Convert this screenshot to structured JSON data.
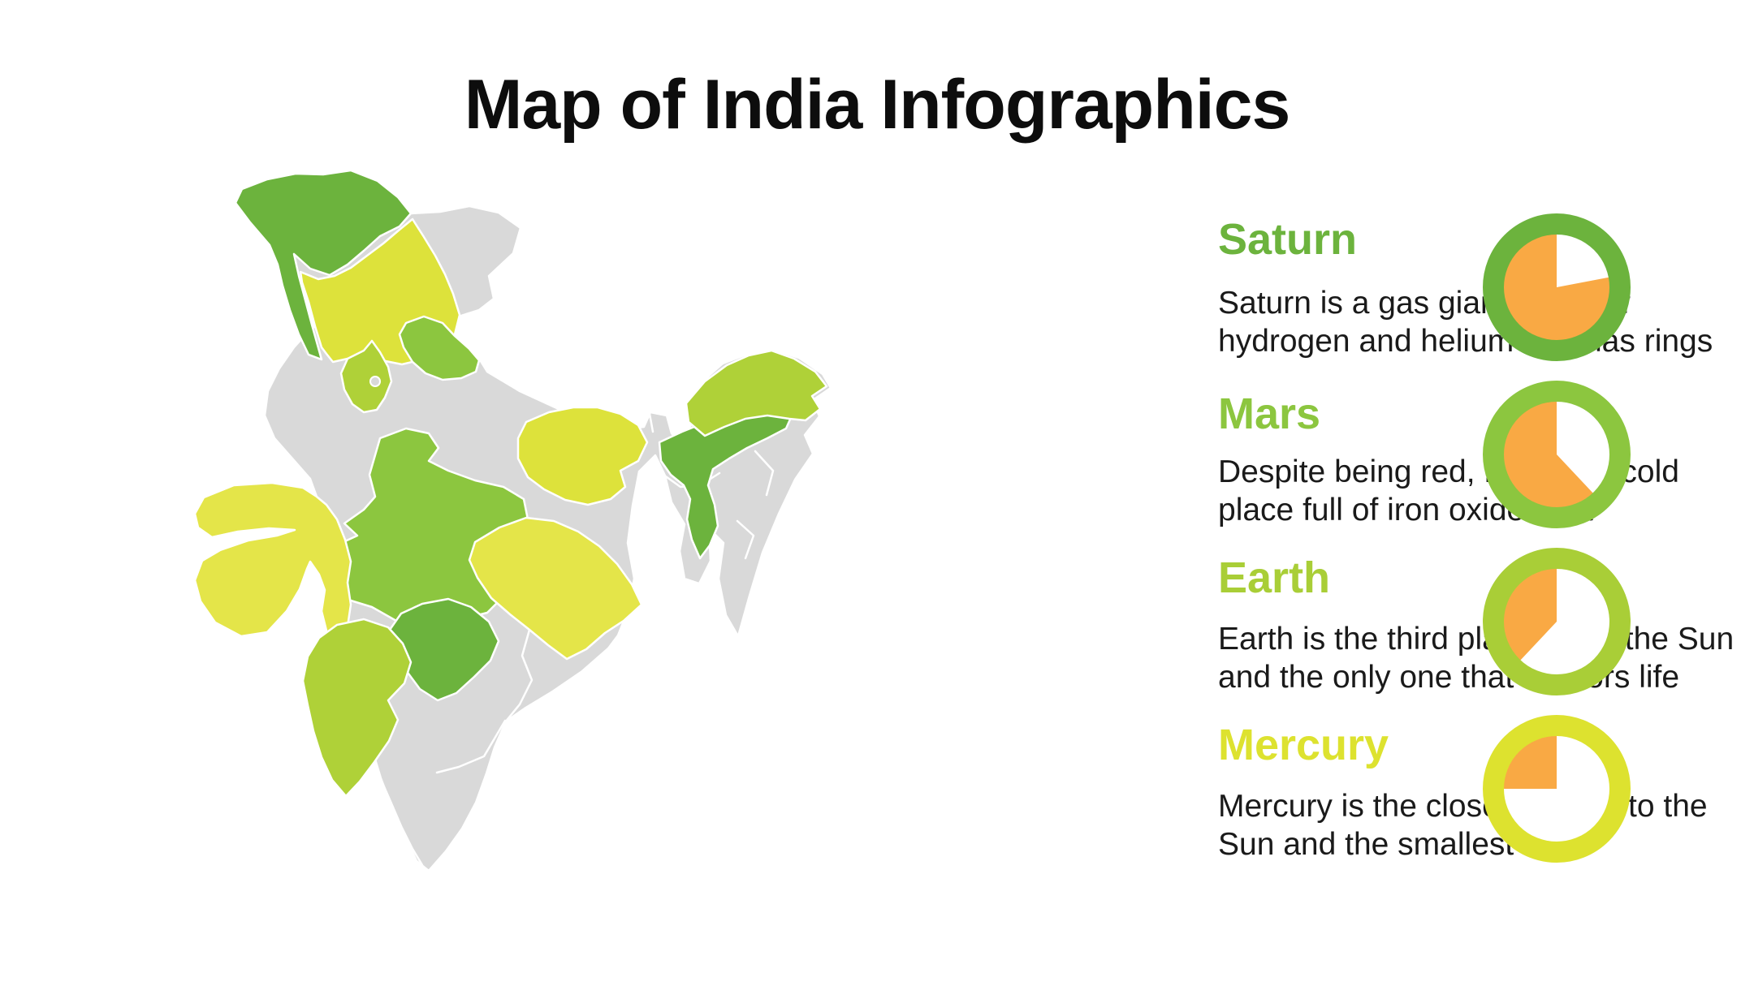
{
  "page": {
    "title": "Map of India Infographics",
    "background_color": "#FFFFFF"
  },
  "sections": [
    {
      "id": "saturn",
      "title": "Saturn",
      "accent_color": "#6CB33D",
      "desc_line1": "Saturn is a gas giant made of",
      "desc_line2": "hydrogen and helium and has rings",
      "percent_filled": 78,
      "pie_fill_color": "#F9A944",
      "pie_empty_color": "#FFFFFF"
    },
    {
      "id": "mars",
      "title": "Mars",
      "accent_color": "#8CC63F",
      "desc_line1": "Despite being red, Mars is a cold",
      "desc_line2": "place full of iron oxide dust",
      "percent_filled": 62,
      "pie_fill_color": "#F9A944",
      "pie_empty_color": "#FFFFFF"
    },
    {
      "id": "earth",
      "title": "Earth",
      "accent_color": "#A9CE37",
      "desc_line1": "Earth is the third planet from the Sun",
      "desc_line2": "and the only one that harbors life",
      "percent_filled": 38,
      "pie_fill_color": "#F9A944",
      "pie_empty_color": "#FFFFFF"
    },
    {
      "id": "mercury",
      "title": "Mercury",
      "accent_color": "#DDE22F",
      "desc_line1": "Mercury is the closest planet to the",
      "desc_line2": "Sun and the smallest one",
      "percent_filled": 25,
      "pie_fill_color": "#F9A944",
      "pie_empty_color": "#FFFFFF"
    }
  ],
  "map": {
    "base_state_color": "#D9D9D9",
    "border_color": "#FFFFFF",
    "highlighted_states": [
      {
        "id": "jammu-kashmir",
        "color": "#6CB33D"
      },
      {
        "id": "jammu-kashmir-south",
        "color": "#DDE23B"
      },
      {
        "id": "uttarakhand",
        "color": "#8CC63F"
      },
      {
        "id": "haryana",
        "color": "#AFD138"
      },
      {
        "id": "madhya-pradesh",
        "color": "#8CC63F"
      },
      {
        "id": "gujarat",
        "color": "#E4E549"
      },
      {
        "id": "bihar",
        "color": "#DDE23B"
      },
      {
        "id": "odisha",
        "color": "#E4E549"
      },
      {
        "id": "telangana",
        "color": "#6CB33D"
      },
      {
        "id": "karnataka",
        "color": "#AFD138"
      },
      {
        "id": "assam",
        "color": "#6CB33D"
      },
      {
        "id": "arunachal-pradesh",
        "color": "#AFD138"
      }
    ]
  },
  "chart_data": [
    {
      "type": "pie",
      "title": "Saturn donut",
      "categories": [
        "filled",
        "empty"
      ],
      "values": [
        78,
        22
      ],
      "colors": [
        "#F9A944",
        "#FFFFFF"
      ],
      "ring_color": "#6CB33D",
      "legend_position": "none"
    },
    {
      "type": "pie",
      "title": "Mars donut",
      "categories": [
        "filled",
        "empty"
      ],
      "values": [
        62,
        38
      ],
      "colors": [
        "#F9A944",
        "#FFFFFF"
      ],
      "ring_color": "#8CC63F",
      "legend_position": "none"
    },
    {
      "type": "pie",
      "title": "Earth donut",
      "categories": [
        "filled",
        "empty"
      ],
      "values": [
        38,
        62
      ],
      "colors": [
        "#F9A944",
        "#FFFFFF"
      ],
      "ring_color": "#A9CE37",
      "legend_position": "none"
    },
    {
      "type": "pie",
      "title": "Mercury donut",
      "categories": [
        "filled",
        "empty"
      ],
      "values": [
        25,
        75
      ],
      "colors": [
        "#F9A944",
        "#FFFFFF"
      ],
      "ring_color": "#DDE22F",
      "legend_position": "none"
    }
  ]
}
